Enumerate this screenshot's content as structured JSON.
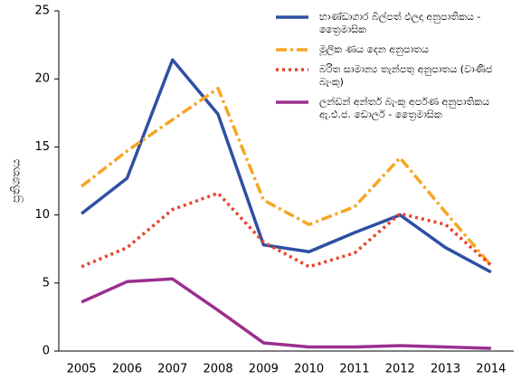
{
  "chart_data": {
    "type": "line",
    "ylabel": "ප්‍රතිශතය",
    "categories": [
      "2005",
      "2006",
      "2007",
      "2008",
      "2009",
      "2010",
      "2011",
      "2012",
      "2013",
      "2014"
    ],
    "series": [
      {
        "name": "භාණ්ඩාගාර බිල්පත් ඵලදා අනුපාතිකය - ත්‍රෛමාසික",
        "color": "#2e4fa3",
        "dash": "solid",
        "values": [
          10.1,
          12.7,
          21.4,
          17.4,
          7.8,
          7.3,
          8.7,
          10.0,
          7.6,
          5.8
        ]
      },
      {
        "name": "මූලික ණය දෙන අනුපාතය",
        "color": "#f5a623",
        "dash": "dashdot",
        "values": [
          12.1,
          14.7,
          17.0,
          19.3,
          11.1,
          9.3,
          10.6,
          14.2,
          10.2,
          6.3
        ]
      },
      {
        "name": "බරිත සාමාන්‍ය තැන්පතු අනුපාතය (වාණිජ බැංකු)",
        "color": "#e8412c",
        "dash": "dotted",
        "values": [
          6.2,
          7.6,
          10.4,
          11.6,
          8.0,
          6.2,
          7.2,
          10.1,
          9.3,
          6.3
        ]
      },
      {
        "name": "ලන්ඩන් අන්තර් බැංකු අර්පණ අනුපාතිකය ඇ.එ.ජ. ඩොලර් - ත්‍රෛමාසික",
        "color": "#9b2f8f",
        "dash": "solid",
        "values": [
          3.6,
          5.1,
          5.3,
          3.0,
          0.6,
          0.3,
          0.3,
          0.4,
          0.3,
          0.2
        ]
      }
    ],
    "ylim": [
      0,
      25
    ],
    "yticks": [
      0,
      5,
      10,
      15,
      20,
      25
    ],
    "grid": false,
    "legend": "upper right"
  }
}
